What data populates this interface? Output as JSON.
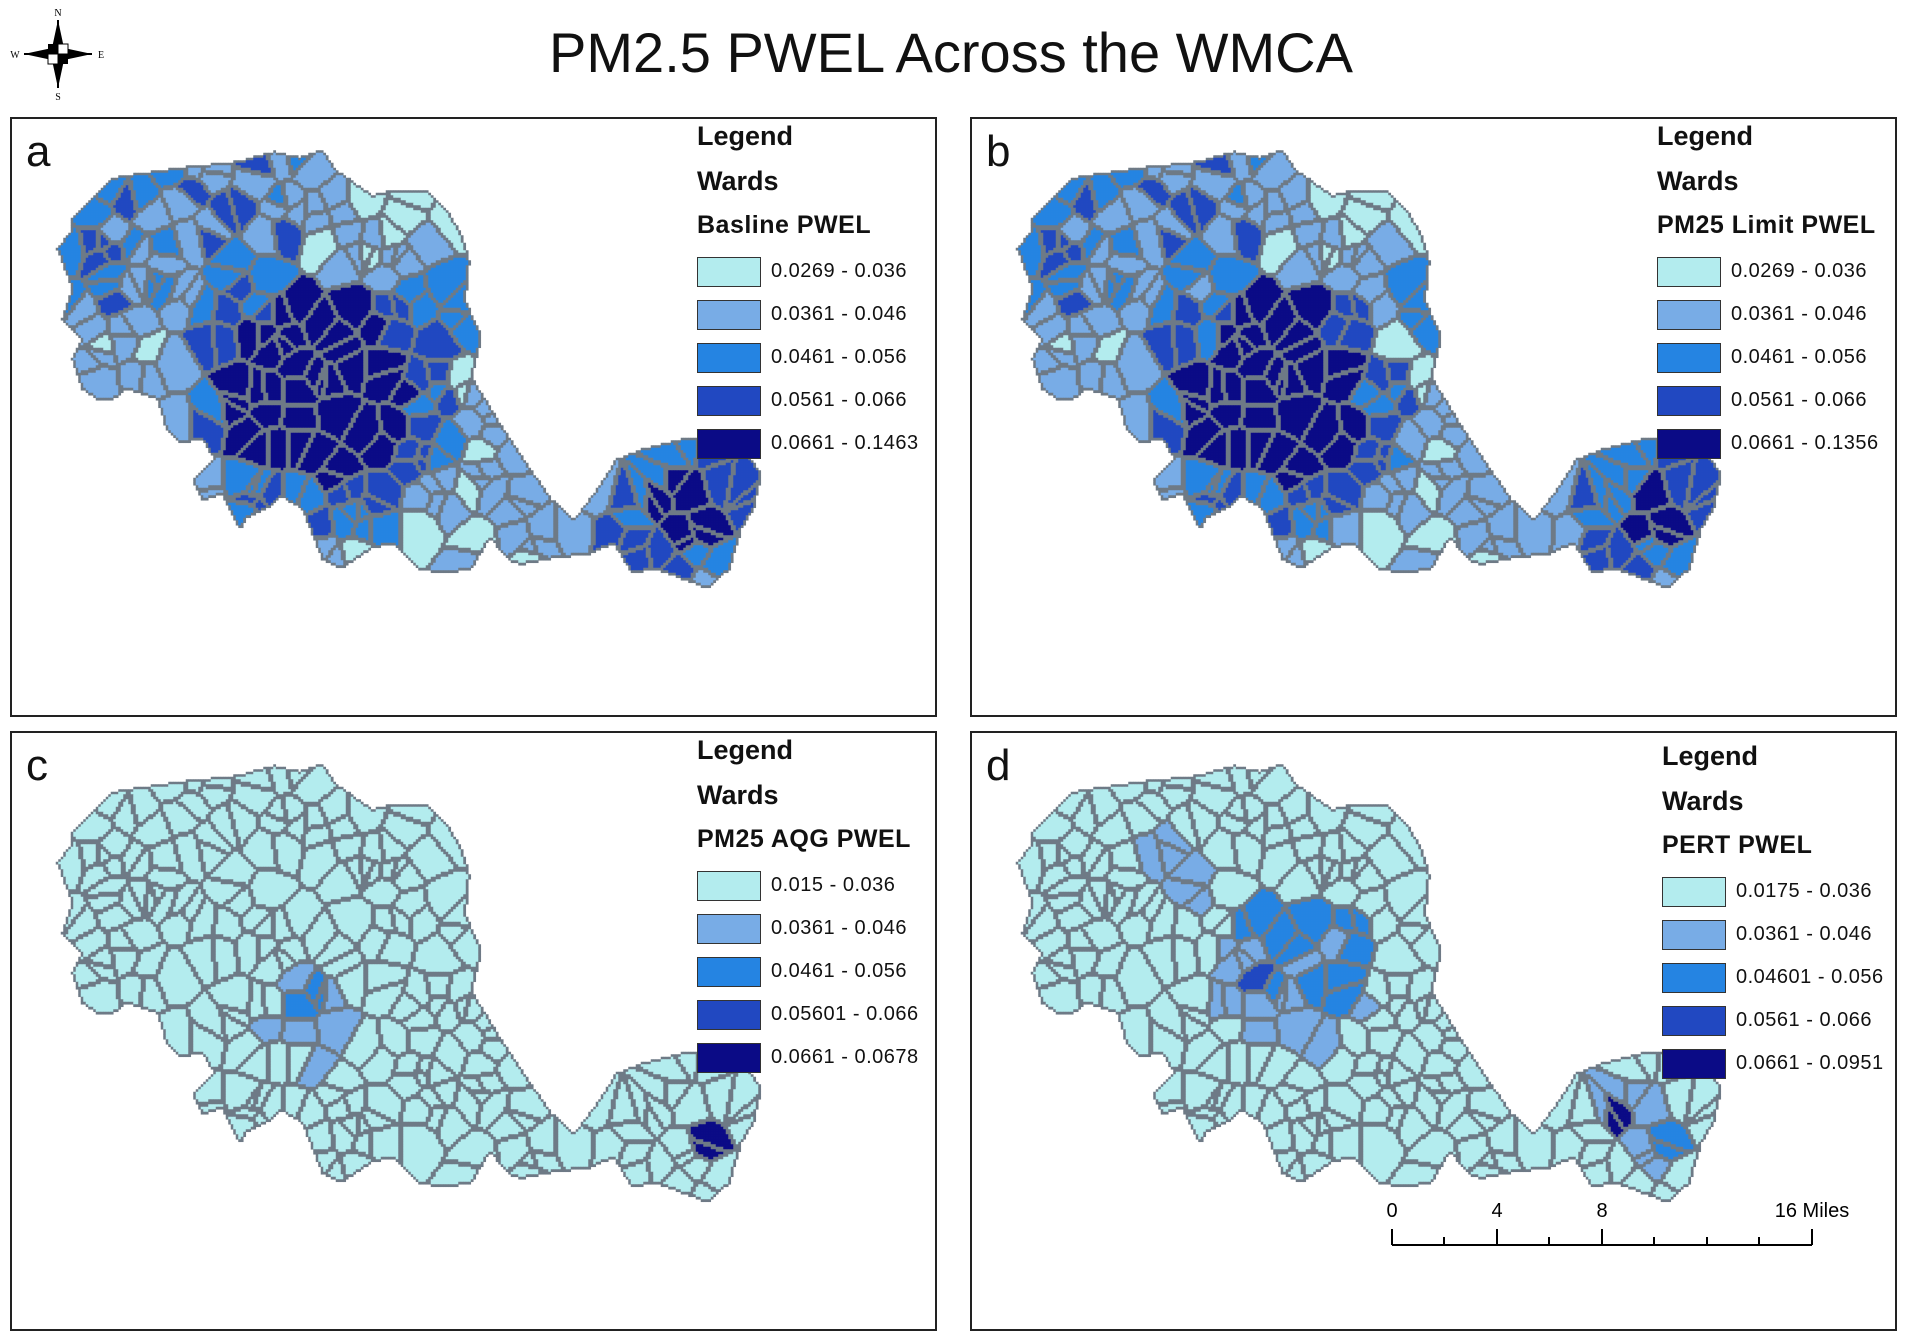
{
  "title": "PM2.5 PWEL Across the WMCA",
  "compass": {
    "n": "N",
    "s": "S",
    "e": "E",
    "w": "W"
  },
  "classes": [
    {
      "color": "#b3ecee"
    },
    {
      "color": "#78ace6"
    },
    {
      "color": "#2584e2"
    },
    {
      "color": "#2148c1"
    },
    {
      "color": "#0b0b86"
    }
  ],
  "panels": [
    {
      "letter": "a",
      "legend_heading": "Legend",
      "layer": "Wards",
      "field": "Basline PWEL",
      "ranges": [
        "0.0269 - 0.036",
        "0.0361 - 0.046",
        "0.0461 - 0.056",
        "0.0561 - 0.066",
        "0.0661 - 0.1463"
      ]
    },
    {
      "letter": "b",
      "legend_heading": "Legend",
      "layer": "Wards",
      "field": "PM25 Limit PWEL",
      "ranges": [
        "0.0269 - 0.036",
        "0.0361 - 0.046",
        "0.0461 - 0.056",
        "0.0561 - 0.066",
        "0.0661 - 0.1356"
      ]
    },
    {
      "letter": "c",
      "legend_heading": "Legend",
      "layer": "Wards",
      "field": "PM25 AQG PWEL",
      "ranges": [
        "0.015 - 0.036",
        "0.0361 - 0.046",
        "0.0461 - 0.056",
        "0.05601 - 0.066",
        "0.0661 - 0.0678"
      ]
    },
    {
      "letter": "d",
      "legend_heading": "Legend",
      "layer": "Wards",
      "field": "PERT PWEL",
      "ranges": [
        "0.0175 - 0.036",
        "0.0361 - 0.046",
        "0.04601 - 0.056",
        "0.0561 - 0.066",
        "0.0661 - 0.0951"
      ]
    }
  ],
  "scale_bar": {
    "ticks": [
      "0",
      "4",
      "8",
      "16 Miles"
    ]
  }
}
